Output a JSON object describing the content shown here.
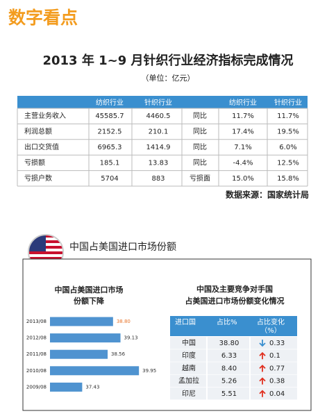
{
  "header": {
    "brand": "数字看点",
    "title": "2013 年 1~9 月针织行业经济指标完成情况",
    "subtitle": "（单位：亿元）"
  },
  "table": {
    "columns": [
      null,
      "纺织行业",
      "针织行业",
      null,
      "纺织行业",
      "针织行业"
    ],
    "rows": [
      [
        "主营业务收入",
        "45585.7",
        "4460.5",
        "同比",
        "11.7%",
        "11.7%"
      ],
      [
        "利润总额",
        "2152.5",
        "210.1",
        "同比",
        "17.4%",
        "19.5%"
      ],
      [
        "出口交货值",
        "6965.3",
        "1414.9",
        "同比",
        "7.1%",
        "6.0%"
      ],
      [
        "亏损额",
        "185.1",
        "13.83",
        "同比",
        "-4.4%",
        "12.5%"
      ],
      [
        "亏损户数",
        "5704",
        "883",
        "亏损面",
        "15.0%",
        "15.8%"
      ]
    ]
  },
  "source": "数据来源：国家统计局",
  "section": {
    "title": "中国占美国进口市场份额"
  },
  "chart_data": {
    "type": "bar",
    "orientation": "horizontal",
    "title": [
      "中国占美国进口市场",
      "份额下降"
    ],
    "categories": [
      "2013/08",
      "2012/08",
      "2011/08",
      "2010/08",
      "2009/08"
    ],
    "values": [
      38.8,
      39.13,
      38.56,
      39.95,
      37.43
    ],
    "value_labels": [
      "38.80",
      "39.13",
      "38.56",
      "39.95",
      "37.43"
    ],
    "color": "#4f93d0",
    "label_colors": [
      "#e8742a",
      "#333333",
      "#333333",
      "#333333",
      "#333333"
    ],
    "xlim": [
      36,
      40.5
    ]
  },
  "share_table": {
    "title": [
      "中国及主要竞争对手国",
      "占美国进口市场份额变化情况"
    ],
    "columns": [
      "进口国",
      "占比%",
      [
        "占比变化",
        "（%）"
      ]
    ],
    "rows": [
      [
        "中国",
        "38.80",
        "0.33"
      ],
      [
        "印度",
        "6.33",
        "0.1"
      ],
      [
        "越南",
        "8.40",
        "0.77"
      ],
      [
        "孟加拉",
        "5.26",
        "0.38"
      ],
      [
        "印尼",
        "5.51",
        "0.04"
      ]
    ],
    "trend": [
      "down",
      "up",
      "up",
      "up",
      "up"
    ],
    "trend_colors": {
      "down": "#3a8fcf",
      "up": "#e03020"
    }
  }
}
